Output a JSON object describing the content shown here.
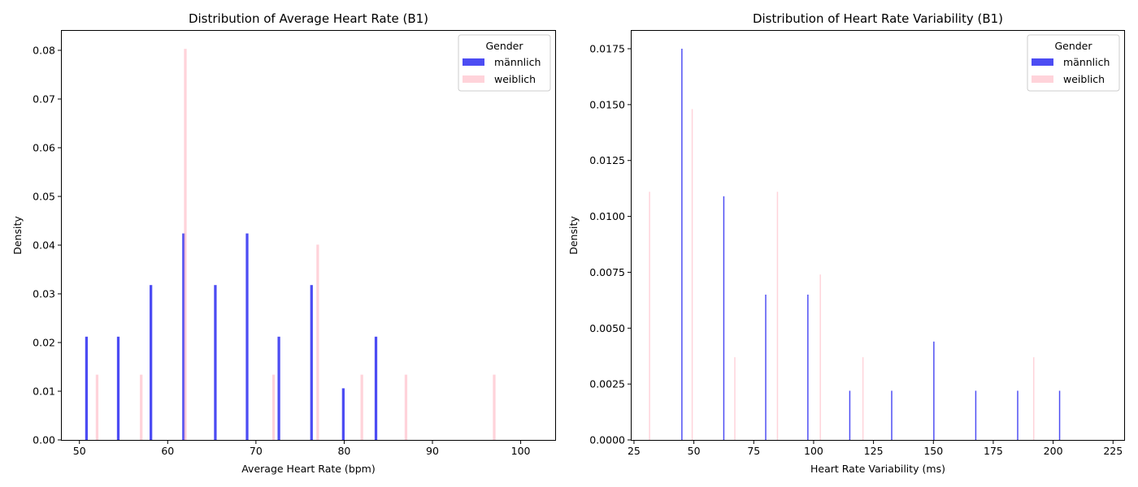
{
  "chart_data": [
    {
      "type": "bar",
      "title": "Distribution of Average Heart Rate (B1)",
      "xlabel": "Average Heart Rate (bpm)",
      "ylabel": "Density",
      "xlim": [
        48,
        104
      ],
      "ylim": [
        0,
        0.084
      ],
      "xticks": [
        50,
        60,
        70,
        80,
        90,
        100
      ],
      "yticks": [
        0.0,
        0.01,
        0.02,
        0.03,
        0.04,
        0.05,
        0.06,
        0.07,
        0.08
      ],
      "ytick_decimals": 2,
      "bar_width": 0.3,
      "grid": false,
      "legend": {
        "title": "Gender",
        "placement": "top-right"
      },
      "series": [
        {
          "name": "männlich",
          "color": "#0000ee",
          "opacity": 0.7,
          "x": [
            50.8,
            54.4,
            58.1,
            61.8,
            65.4,
            69.0,
            72.6,
            76.3,
            79.9,
            83.6
          ],
          "values": [
            0.0212,
            0.0212,
            0.0318,
            0.0424,
            0.0318,
            0.0424,
            0.0212,
            0.0318,
            0.0106,
            0.0212
          ]
        },
        {
          "name": "weiblich",
          "color": "#ffb6c1",
          "opacity": 0.6,
          "x": [
            52.0,
            57.0,
            62.0,
            72.0,
            77.0,
            82.0,
            87.0,
            97.0
          ],
          "values": [
            0.0134,
            0.0134,
            0.0803,
            0.0134,
            0.0401,
            0.0134,
            0.0134,
            0.0134
          ]
        }
      ]
    },
    {
      "type": "bar",
      "title": "Distribution of Heart Rate Variability (B1)",
      "xlabel": "Heart Rate Variability (ms)",
      "ylabel": "Density",
      "xlim": [
        24,
        230
      ],
      "ylim": [
        0,
        0.0183
      ],
      "xticks": [
        25,
        50,
        75,
        100,
        125,
        150,
        175,
        200,
        225
      ],
      "yticks": [
        0.0,
        0.0025,
        0.005,
        0.0075,
        0.01,
        0.0125,
        0.015,
        0.0175
      ],
      "ytick_decimals": 4,
      "bar_width": 0.5,
      "grid": false,
      "legend": {
        "title": "Gender",
        "placement": "top-right"
      },
      "series": [
        {
          "name": "männlich",
          "color": "#0000ee",
          "opacity": 0.7,
          "x": [
            45.0,
            62.5,
            80.0,
            97.6,
            115.1,
            132.6,
            150.2,
            167.7,
            185.2,
            202.7
          ],
          "values": [
            0.0175,
            0.0109,
            0.0065,
            0.0065,
            0.0022,
            0.0022,
            0.0044,
            0.0022,
            0.0022,
            0.0022
          ]
        },
        {
          "name": "weiblich",
          "color": "#ffb6c1",
          "opacity": 0.6,
          "x": [
            31.5,
            49.3,
            67.1,
            84.9,
            102.8,
            120.6,
            138.4,
            156.2,
            174.0,
            191.9
          ],
          "values": [
            0.0111,
            0.0148,
            0.0037,
            0.0111,
            0.0074,
            0.0037,
            0.0,
            0.0,
            0.0,
            0.0037
          ]
        }
      ]
    }
  ]
}
